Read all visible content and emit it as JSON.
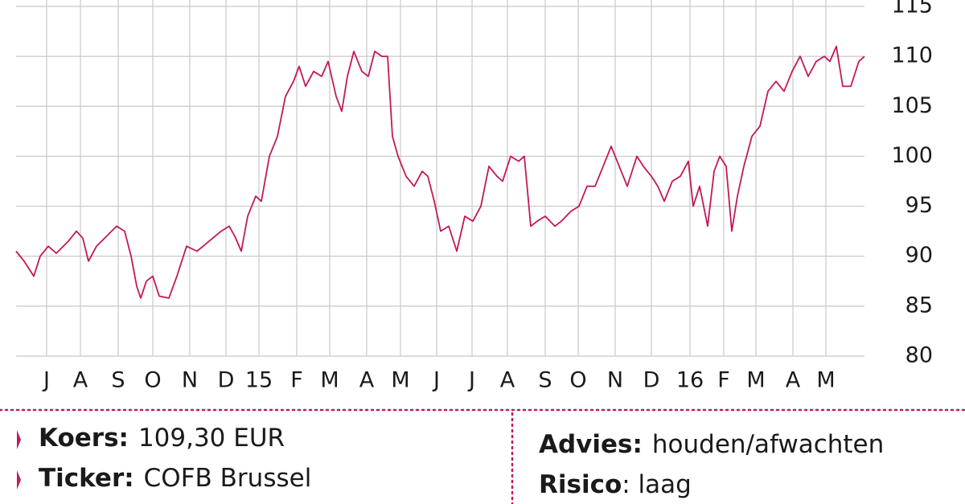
{
  "chart_data": {
    "type": "line",
    "x": [
      0,
      10,
      22,
      30,
      40,
      50,
      65,
      75,
      83,
      90,
      100,
      115,
      125,
      135,
      143,
      150,
      155,
      162,
      170,
      178,
      190,
      200,
      212,
      225,
      240,
      255,
      265,
      272,
      280,
      288,
      298,
      305,
      315,
      325,
      335,
      345,
      352,
      360,
      370,
      380,
      388,
      398,
      405,
      412,
      420,
      430,
      438,
      446,
      455,
      462,
      468,
      475,
      485,
      495,
      505,
      512,
      520,
      528,
      538,
      548,
      558,
      568,
      578,
      588,
      598,
      605,
      615,
      625,
      632,
      640,
      648,
      658,
      670,
      678,
      690,
      700,
      710,
      720,
      730,
      740,
      750,
      760,
      772,
      780,
      790,
      798,
      806,
      816,
      826,
      836,
      842,
      850,
      860,
      868,
      875,
      883,
      890,
      897,
      905,
      915,
      925,
      935,
      945,
      955,
      965,
      975,
      985,
      995,
      1005,
      1012,
      1020,
      1028,
      1038,
      1048,
      1055
    ],
    "series": [
      {
        "name": "COFB",
        "color": "#c2185b",
        "values": [
          90.5,
          89.5,
          88,
          90,
          91,
          90.3,
          91.5,
          92.5,
          91.8,
          89.5,
          91,
          92.2,
          93,
          92.5,
          90,
          87,
          85.8,
          87.5,
          88,
          86,
          85.8,
          88,
          91,
          90.5,
          91.5,
          92.5,
          93,
          92,
          90.5,
          94,
          96,
          95.5,
          100,
          102,
          106,
          107.5,
          109,
          107,
          108.5,
          108,
          109.5,
          106,
          104.5,
          108,
          110.5,
          108.5,
          108,
          110.5,
          110,
          110,
          102,
          100,
          98,
          97,
          98.5,
          98,
          95.5,
          92.5,
          93,
          90.5,
          94,
          93.5,
          95,
          99,
          98,
          97.5,
          100,
          99.5,
          100,
          93,
          93.5,
          94,
          93,
          93.5,
          94.5,
          95,
          97,
          97,
          99,
          101,
          99,
          97,
          100,
          99,
          98,
          97,
          95.5,
          97.5,
          98,
          99.5,
          95,
          97,
          93,
          98.5,
          100,
          99,
          92.5,
          96,
          99,
          102,
          103,
          106.5,
          107.5,
          106.5,
          108.5,
          110,
          108,
          109.5,
          110,
          109.5,
          111,
          107,
          107,
          109.5,
          110
        ]
      }
    ],
    "xlim": [
      0,
      1055
    ],
    "xticks": [
      {
        "value": 38,
        "label": "J"
      },
      {
        "value": 80,
        "label": "A"
      },
      {
        "value": 127,
        "label": "S"
      },
      {
        "value": 170,
        "label": "O"
      },
      {
        "value": 216,
        "label": "N"
      },
      {
        "value": 261,
        "label": "D"
      },
      {
        "value": 302,
        "label": "15"
      },
      {
        "value": 349,
        "label": "F"
      },
      {
        "value": 390,
        "label": "M"
      },
      {
        "value": 436,
        "label": "A"
      },
      {
        "value": 478,
        "label": "M"
      },
      {
        "value": 523,
        "label": "J"
      },
      {
        "value": 567,
        "label": "J"
      },
      {
        "value": 611,
        "label": "A"
      },
      {
        "value": 658,
        "label": "S"
      },
      {
        "value": 699,
        "label": "O"
      },
      {
        "value": 745,
        "label": "N"
      },
      {
        "value": 790,
        "label": "D"
      },
      {
        "value": 838,
        "label": "16"
      },
      {
        "value": 880,
        "label": "F"
      },
      {
        "value": 920,
        "label": "M"
      },
      {
        "value": 966,
        "label": "A"
      },
      {
        "value": 1007,
        "label": "M"
      }
    ],
    "ylim": [
      80,
      115
    ],
    "yticks": [
      80,
      85,
      90,
      95,
      100,
      105,
      110,
      115
    ],
    "grid": true
  },
  "info": {
    "left": [
      {
        "label": "Koers:",
        "value": "109,30 EUR"
      },
      {
        "label": "Ticker:",
        "value": "COFB Brussel"
      }
    ],
    "right": [
      {
        "label": "Advies:",
        "value": "houden/afwachten"
      },
      {
        "label": "Risico",
        "value": ": laag"
      }
    ]
  }
}
